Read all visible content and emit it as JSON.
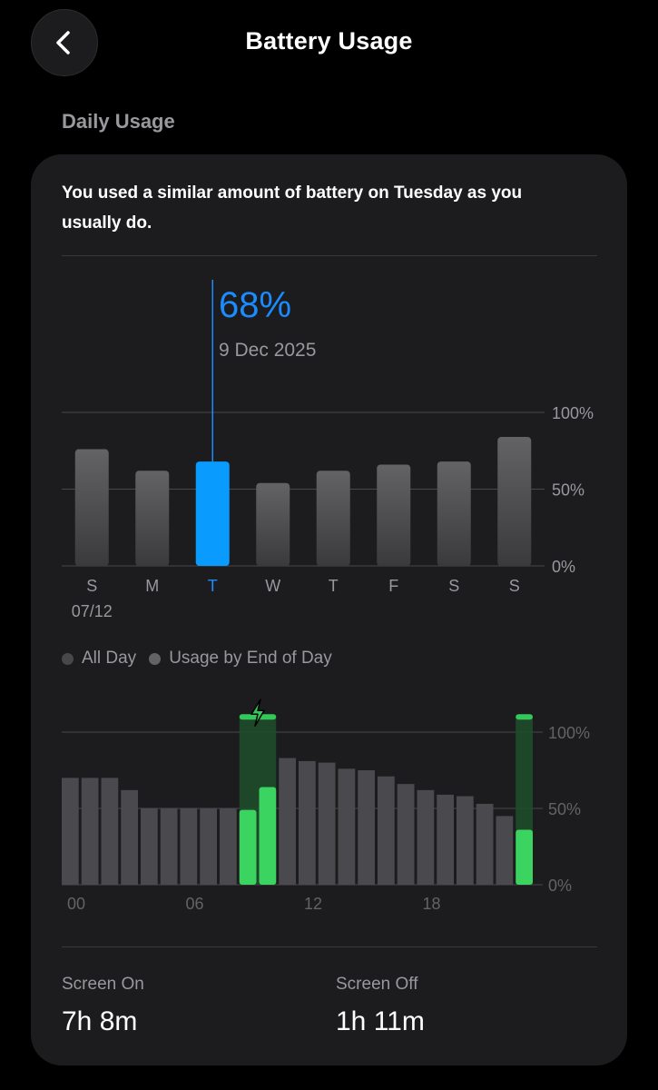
{
  "nav": {
    "title": "Battery Usage",
    "back_icon": "chevron-left-icon"
  },
  "section": {
    "header": "Daily Usage"
  },
  "summary": {
    "text": "You used a similar amount of battery on Tuesday as you usually do."
  },
  "selected": {
    "value": "68%",
    "date": "9 Dec 2025"
  },
  "colors": {
    "accent": "#1a8cff",
    "bar": "#5a5a5e",
    "charging": "#34c759",
    "background": "#1c1c1e"
  },
  "chart_data": [
    {
      "type": "bar",
      "categories": [
        "S",
        "M",
        "T",
        "W",
        "T",
        "F",
        "S",
        "S"
      ],
      "sublabel_first": "07/12",
      "values": [
        76,
        62,
        68,
        54,
        62,
        66,
        68,
        84
      ],
      "selected_index": 2,
      "y_ticks": [
        "100%",
        "50%",
        "0%"
      ],
      "ylim": [
        0,
        100
      ]
    },
    {
      "type": "bar",
      "title": "",
      "legend": [
        {
          "name": "All Day",
          "color": "#48484a"
        },
        {
          "name": "Usage by End of Day",
          "color": "#636366"
        }
      ],
      "x_ticks": [
        "00",
        "06",
        "12",
        "18"
      ],
      "values": [
        70,
        70,
        70,
        62,
        50,
        50,
        50,
        50,
        50,
        49,
        64,
        83,
        81,
        80,
        76,
        75,
        71,
        66,
        62,
        59,
        58,
        53,
        45,
        36
      ],
      "charging_indices": [
        9,
        10,
        23
      ],
      "charging_band_value": 110,
      "y_ticks": [
        "100%",
        "50%",
        "0%"
      ],
      "ylim": [
        0,
        110
      ]
    }
  ],
  "stats": {
    "screen_on_label": "Screen On",
    "screen_on_value": "7h 8m",
    "screen_off_label": "Screen Off",
    "screen_off_value": "1h 11m"
  }
}
